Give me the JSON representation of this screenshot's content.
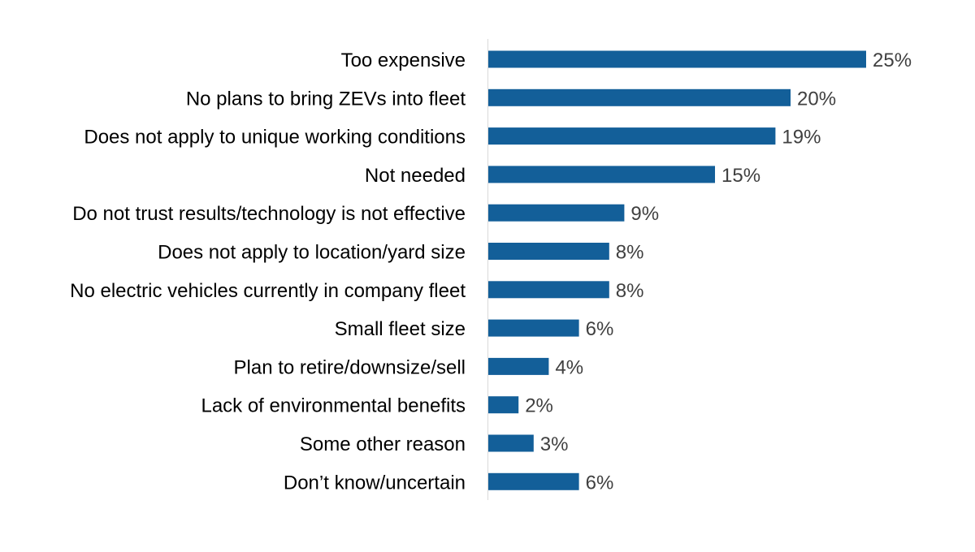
{
  "chart_data": {
    "type": "bar",
    "orientation": "horizontal",
    "title": "",
    "xlabel": "",
    "ylabel": "",
    "categories": [
      "Too expensive",
      "No plans to bring ZEVs into fleet",
      "Does not apply to unique working conditions",
      "Not needed",
      "Do not trust results/technology is not effective",
      "Does not apply to location/yard size",
      "No electric vehicles currently in company fleet",
      "Small fleet size",
      "Plan to retire/downsize/sell",
      "Lack of environmental benefits",
      "Some other reason",
      "Don’t know/uncertain"
    ],
    "values": [
      25,
      20,
      19,
      15,
      9,
      8,
      8,
      6,
      4,
      2,
      3,
      6
    ],
    "data_labels": [
      "25%",
      "20%",
      "19%",
      "15%",
      "9%",
      "8%",
      "8%",
      "6%",
      "4%",
      "2%",
      "3%",
      "6%"
    ],
    "unit": "%",
    "xlim": [
      0,
      25
    ],
    "grid": false,
    "legend": "none",
    "colors": {
      "bar": "#135f99",
      "label": "#404040",
      "axis": "#d9d9d9"
    }
  }
}
